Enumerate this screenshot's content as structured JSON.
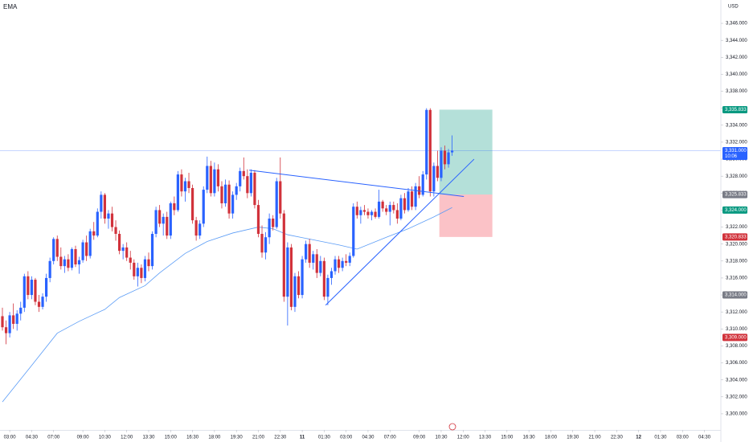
{
  "chart_data": {
    "type": "candlestick",
    "title": "EMA",
    "currency": "USD",
    "up_color": "#2962ff",
    "down_color": "#d1323b",
    "candles": [
      [
        3311.5,
        3312.5,
        3309.8,
        3310.2
      ],
      [
        3310.2,
        3311.0,
        3308.2,
        3309.5
      ],
      [
        3309.5,
        3312.0,
        3309.0,
        3311.6
      ],
      [
        3311.6,
        3313.0,
        3310.0,
        3310.6
      ],
      [
        3310.6,
        3312.2,
        3309.8,
        3311.8
      ],
      [
        3311.8,
        3313.2,
        3311.0,
        3312.5
      ],
      [
        3312.5,
        3316.5,
        3312.0,
        3316.2
      ],
      [
        3316.2,
        3316.8,
        3313.5,
        3314.0
      ],
      [
        3314.0,
        3316.2,
        3313.5,
        3315.8
      ],
      [
        3315.8,
        3316.0,
        3312.8,
        3313.2
      ],
      [
        3313.2,
        3314.0,
        3312.0,
        3312.6
      ],
      [
        3312.6,
        3314.2,
        3312.3,
        3313.8
      ],
      [
        3313.8,
        3316.5,
        3313.2,
        3316.0
      ],
      [
        3316.0,
        3318.4,
        3315.5,
        3318.0
      ],
      [
        3318.0,
        3320.8,
        3317.6,
        3320.6
      ],
      [
        3320.6,
        3321.0,
        3318.0,
        3318.5
      ],
      [
        3318.5,
        3319.6,
        3317.0,
        3317.4
      ],
      [
        3317.4,
        3318.6,
        3316.6,
        3318.2
      ],
      [
        3318.2,
        3318.8,
        3316.8,
        3317.2
      ],
      [
        3317.2,
        3319.6,
        3316.9,
        3319.4
      ],
      [
        3319.4,
        3319.8,
        3317.3,
        3317.6
      ],
      [
        3317.6,
        3318.5,
        3316.5,
        3318.1
      ],
      [
        3318.1,
        3320.5,
        3317.8,
        3320.2
      ],
      [
        3320.2,
        3321.0,
        3318.0,
        3318.6
      ],
      [
        3318.6,
        3321.8,
        3318.3,
        3321.5
      ],
      [
        3321.5,
        3322.6,
        3320.5,
        3321.0
      ],
      [
        3321.0,
        3324.2,
        3320.8,
        3323.8
      ],
      [
        3323.8,
        3326.2,
        3323.0,
        3325.8
      ],
      [
        3325.8,
        3326.0,
        3322.4,
        3323.0
      ],
      [
        3323.0,
        3324.0,
        3321.8,
        3323.6
      ],
      [
        3323.6,
        3324.4,
        3321.5,
        3322.0
      ],
      [
        3322.0,
        3322.8,
        3320.4,
        3321.2
      ],
      [
        3321.2,
        3321.6,
        3318.8,
        3319.2
      ],
      [
        3319.2,
        3320.0,
        3318.2,
        3319.6
      ],
      [
        3319.6,
        3320.2,
        3318.0,
        3318.4
      ],
      [
        3318.4,
        3319.2,
        3317.0,
        3317.8
      ],
      [
        3317.8,
        3318.2,
        3315.8,
        3316.2
      ],
      [
        3316.2,
        3317.8,
        3315.0,
        3317.2
      ],
      [
        3317.2,
        3317.6,
        3315.4,
        3316.0
      ],
      [
        3316.0,
        3318.6,
        3315.6,
        3318.2
      ],
      [
        3318.2,
        3319.0,
        3316.8,
        3317.4
      ],
      [
        3317.4,
        3321.5,
        3317.0,
        3321.2
      ],
      [
        3321.2,
        3324.4,
        3320.8,
        3324.0
      ],
      [
        3324.0,
        3324.6,
        3322.0,
        3322.4
      ],
      [
        3322.4,
        3323.6,
        3321.0,
        3323.2
      ],
      [
        3323.2,
        3323.8,
        3320.6,
        3321.0
      ],
      [
        3321.0,
        3325.0,
        3320.6,
        3324.8
      ],
      [
        3324.8,
        3325.6,
        3323.4,
        3324.0
      ],
      [
        3324.0,
        3328.6,
        3323.8,
        3328.2
      ],
      [
        3328.2,
        3328.8,
        3325.6,
        3326.2
      ],
      [
        3326.2,
        3327.8,
        3325.0,
        3327.4
      ],
      [
        3327.4,
        3328.4,
        3326.0,
        3326.6
      ],
      [
        3326.6,
        3327.0,
        3322.4,
        3322.8
      ],
      [
        3322.8,
        3323.2,
        3320.4,
        3321.0
      ],
      [
        3321.0,
        3322.8,
        3320.6,
        3322.4
      ],
      [
        3322.4,
        3326.8,
        3322.0,
        3326.4
      ],
      [
        3326.4,
        3330.3,
        3326.0,
        3329.2
      ],
      [
        3329.2,
        3329.8,
        3325.6,
        3326.0
      ],
      [
        3326.0,
        3329.6,
        3325.6,
        3328.8
      ],
      [
        3328.8,
        3329.4,
        3326.2,
        3326.8
      ],
      [
        3326.8,
        3327.4,
        3324.2,
        3324.8
      ],
      [
        3324.8,
        3327.6,
        3324.4,
        3327.0
      ],
      [
        3327.0,
        3327.5,
        3323.0,
        3323.6
      ],
      [
        3323.6,
        3326.2,
        3323.0,
        3325.8
      ],
      [
        3325.8,
        3327.2,
        3325.2,
        3326.8
      ],
      [
        3326.8,
        3329.0,
        3326.2,
        3328.6
      ],
      [
        3328.6,
        3330.2,
        3327.6,
        3328.0
      ],
      [
        3328.0,
        3328.8,
        3325.4,
        3326.0
      ],
      [
        3326.0,
        3328.8,
        3325.6,
        3328.4
      ],
      [
        3328.4,
        3328.7,
        3324.2,
        3324.6
      ],
      [
        3324.6,
        3325.2,
        3320.8,
        3321.2
      ],
      [
        3321.2,
        3322.2,
        3318.4,
        3319.0
      ],
      [
        3319.0,
        3321.4,
        3318.2,
        3320.8
      ],
      [
        3320.8,
        3323.6,
        3320.0,
        3323.0
      ],
      [
        3323.0,
        3323.4,
        3321.6,
        3322.0
      ],
      [
        3322.0,
        3327.8,
        3321.8,
        3327.4
      ],
      [
        3327.4,
        3330.2,
        3323.0,
        3323.6
      ],
      [
        3323.6,
        3324.0,
        3313.2,
        3313.8
      ],
      [
        3313.8,
        3320.2,
        3310.4,
        3319.6
      ],
      [
        3319.6,
        3320.0,
        3312.2,
        3312.6
      ],
      [
        3312.6,
        3316.6,
        3312.0,
        3316.2
      ],
      [
        3316.2,
        3316.8,
        3313.6,
        3314.0
      ],
      [
        3314.0,
        3318.6,
        3313.6,
        3318.2
      ],
      [
        3318.2,
        3320.4,
        3317.8,
        3320.0
      ],
      [
        3320.0,
        3320.6,
        3317.2,
        3317.8
      ],
      [
        3317.8,
        3319.2,
        3317.0,
        3318.8
      ],
      [
        3318.8,
        3319.4,
        3316.0,
        3316.6
      ],
      [
        3316.6,
        3318.6,
        3316.2,
        3318.0
      ],
      [
        3318.0,
        3318.4,
        3313.4,
        3313.8
      ],
      [
        3313.8,
        3316.4,
        3312.8,
        3316.0
      ],
      [
        3316.0,
        3317.2,
        3315.2,
        3316.8
      ],
      [
        3316.8,
        3318.6,
        3316.4,
        3318.2
      ],
      [
        3318.2,
        3318.6,
        3316.6,
        3317.2
      ],
      [
        3317.2,
        3318.4,
        3316.8,
        3318.0
      ],
      [
        3318.0,
        3318.8,
        3317.4,
        3317.8
      ],
      [
        3317.8,
        3319.0,
        3317.4,
        3318.6
      ],
      [
        3318.6,
        3324.8,
        3318.4,
        3324.4
      ],
      [
        3324.4,
        3325.0,
        3323.0,
        3323.4
      ],
      [
        3323.4,
        3324.4,
        3322.4,
        3324.0
      ],
      [
        3324.0,
        3324.6,
        3323.4,
        3323.8
      ],
      [
        3323.8,
        3324.2,
        3323.0,
        3323.4
      ],
      [
        3323.4,
        3324.0,
        3322.8,
        3323.8
      ],
      [
        3323.8,
        3324.2,
        3323.0,
        3323.2
      ],
      [
        3323.2,
        3326.4,
        3323.0,
        3325.0
      ],
      [
        3325.0,
        3325.2,
        3323.8,
        3324.2
      ],
      [
        3324.2,
        3324.6,
        3323.4,
        3323.8
      ],
      [
        3323.8,
        3325.0,
        3322.2,
        3324.6
      ],
      [
        3324.6,
        3325.0,
        3323.6,
        3324.0
      ],
      [
        3324.0,
        3324.8,
        3322.4,
        3323.0
      ],
      [
        3323.0,
        3325.8,
        3322.8,
        3325.4
      ],
      [
        3325.4,
        3326.0,
        3323.6,
        3324.0
      ],
      [
        3324.0,
        3326.6,
        3323.8,
        3326.2
      ],
      [
        3326.2,
        3326.8,
        3324.0,
        3324.4
      ],
      [
        3324.4,
        3327.2,
        3324.0,
        3326.8
      ],
      [
        3326.8,
        3328.0,
        3325.4,
        3325.8
      ],
      [
        3325.8,
        3328.6,
        3325.6,
        3328.2
      ],
      [
        3328.2,
        3336.0,
        3327.6,
        3335.8
      ],
      [
        3335.8,
        3336.0,
        3325.6,
        3326.2
      ],
      [
        3326.2,
        3329.6,
        3325.6,
        3329.2
      ],
      [
        3329.2,
        3331.0,
        3327.4,
        3327.8
      ],
      [
        3327.8,
        3331.4,
        3327.4,
        3331.0
      ],
      [
        3331.0,
        3331.6,
        3328.8,
        3329.4
      ],
      [
        3329.4,
        3331.2,
        3329.0,
        3330.8
      ],
      [
        3330.8,
        3332.8,
        3330.4,
        3331.0
      ]
    ],
    "ema": {
      "color": "#5b9cf6",
      "x": [
        0,
        8,
        15,
        21,
        28,
        32,
        39,
        43,
        50,
        56,
        63,
        70,
        74,
        78,
        85,
        92,
        97,
        105,
        111,
        118,
        123
      ],
      "values": [
        3301.4,
        3305.7,
        3309.5,
        3310.9,
        3312.3,
        3313.7,
        3315.1,
        3316.6,
        3318.9,
        3320.3,
        3321.3,
        3322.0,
        3321.8,
        3321.1,
        3320.5,
        3319.9,
        3319.4,
        3320.8,
        3321.8,
        3323.2,
        3324.3
      ]
    },
    "trendlines": [
      {
        "x": [
          67.5,
          126.2
        ],
        "y": [
          3328.7,
          3325.6
        ]
      },
      {
        "x": [
          88.4,
          129
        ],
        "y": [
          3312.8,
          3330.0
        ]
      }
    ],
    "position": {
      "x": [
        119.5,
        134
      ],
      "entry": 3325.833,
      "target": 3335.833,
      "stop": 3320.833
    },
    "xlim": [
      -0.66,
      196.5
    ],
    "ylim": [
      3298.1,
      3348.75
    ],
    "xticks": [
      {
        "value": 2,
        "label": "03:00"
      },
      {
        "value": 8,
        "label": "04:30"
      },
      {
        "value": 14,
        "label": "07:00"
      },
      {
        "value": 22,
        "label": "09:00"
      },
      {
        "value": 28,
        "label": "10:30"
      },
      {
        "value": 34,
        "label": "12:00"
      },
      {
        "value": 40,
        "label": "13:30"
      },
      {
        "value": 46,
        "label": "15:00"
      },
      {
        "value": 52,
        "label": "16:30"
      },
      {
        "value": 58,
        "label": "18:00"
      },
      {
        "value": 64,
        "label": "19:30"
      },
      {
        "value": 70,
        "label": "21:00"
      },
      {
        "value": 76,
        "label": "22:30"
      },
      {
        "value": 82,
        "label": "11"
      },
      {
        "value": 88,
        "label": "01:30"
      },
      {
        "value": 94,
        "label": "03:00"
      },
      {
        "value": 100,
        "label": "04:30"
      },
      {
        "value": 106,
        "label": "07:00"
      },
      {
        "value": 114,
        "label": "09:00"
      },
      {
        "value": 120,
        "label": "10:30"
      },
      {
        "value": 126,
        "label": "12:00"
      },
      {
        "value": 132,
        "label": "13:30"
      },
      {
        "value": 138,
        "label": "15:00"
      },
      {
        "value": 144,
        "label": "16:30"
      },
      {
        "value": 150,
        "label": "18:00"
      },
      {
        "value": 156,
        "label": "19:30"
      },
      {
        "value": 162,
        "label": "21:00"
      },
      {
        "value": 168,
        "label": "22:30"
      },
      {
        "value": 174,
        "label": "12"
      },
      {
        "value": 180,
        "label": "01:30"
      },
      {
        "value": 186,
        "label": "03:00"
      },
      {
        "value": 192,
        "label": "04:30"
      }
    ],
    "yticks": [
      {
        "value": 3300,
        "label": "3,300.000"
      },
      {
        "value": 3302,
        "label": "3,302.000"
      },
      {
        "value": 3304,
        "label": "3,304.000"
      },
      {
        "value": 3306,
        "label": "3,306.000"
      },
      {
        "value": 3308,
        "label": "3,308.000"
      },
      {
        "value": 3310,
        "label": "3,310.000"
      },
      {
        "value": 3312,
        "label": "3,312.000"
      },
      {
        "value": 3314,
        "label": "3,314.000"
      },
      {
        "value": 3316,
        "label": "3,316.000"
      },
      {
        "value": 3318,
        "label": "3,318.000"
      },
      {
        "value": 3320,
        "label": "3,320.000"
      },
      {
        "value": 3322,
        "label": "3,322.000"
      },
      {
        "value": 3324,
        "label": "3,324.000"
      },
      {
        "value": 3326,
        "label": "3,326.000"
      },
      {
        "value": 3328,
        "label": "3,328.000"
      },
      {
        "value": 3330,
        "label": "3,330.000"
      },
      {
        "value": 3332,
        "label": "3,332.000"
      },
      {
        "value": 3334,
        "label": "3,334.000"
      },
      {
        "value": 3336,
        "label": "3,336.000"
      },
      {
        "value": 3338,
        "label": "3,338.000"
      },
      {
        "value": 3340,
        "label": "3,340.000"
      },
      {
        "value": 3342,
        "label": "3,342.000"
      },
      {
        "value": 3344,
        "label": "3,344.000"
      },
      {
        "value": 3346,
        "label": "3,346.000"
      }
    ],
    "price_labels": [
      {
        "value": 3335.833,
        "label": "3,335.833",
        "color": "#089981"
      },
      {
        "value": 3331.0,
        "label": "3,331.000",
        "sub": "10:06",
        "color": "#2962ff"
      },
      {
        "value": 3325.833,
        "label": "3,325.833",
        "color": "#787b86"
      },
      {
        "value": 3324.0,
        "label": "3,324.000",
        "color": "#089981"
      },
      {
        "value": 3320.833,
        "label": "3,320.833",
        "color": "#d1323b"
      },
      {
        "value": 3314.0,
        "label": "3,314.000",
        "color": "#787b86"
      },
      {
        "value": 3309.0,
        "label": "3,309.000",
        "color": "#d1323b"
      }
    ]
  }
}
